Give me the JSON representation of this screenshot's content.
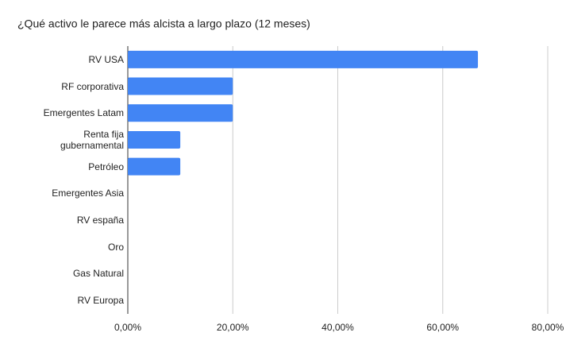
{
  "chart_data": {
    "type": "bar",
    "orientation": "horizontal",
    "title": "¿Qué activo le parece más alcista a largo plazo (12 meses)",
    "categories": [
      "RV USA",
      "RF corporativa",
      "Emergentes Latam",
      "Renta fija gubernamental",
      "Petróleo",
      "Emergentes Asia",
      "RV españa",
      "Oro",
      "Gas Natural",
      "RV Europa"
    ],
    "values": [
      66.7,
      20,
      20,
      10,
      10,
      0,
      0,
      0,
      0,
      0
    ],
    "color": "#4285f4",
    "xlim": [
      0,
      80
    ],
    "xticks": [
      {
        "value": 0,
        "label": "0,00%"
      },
      {
        "value": 20,
        "label": "20,00%"
      },
      {
        "value": 40,
        "label": "40,00%"
      },
      {
        "value": 60,
        "label": "60,00%"
      },
      {
        "value": 80,
        "label": "80,00%"
      }
    ],
    "grid": true
  }
}
